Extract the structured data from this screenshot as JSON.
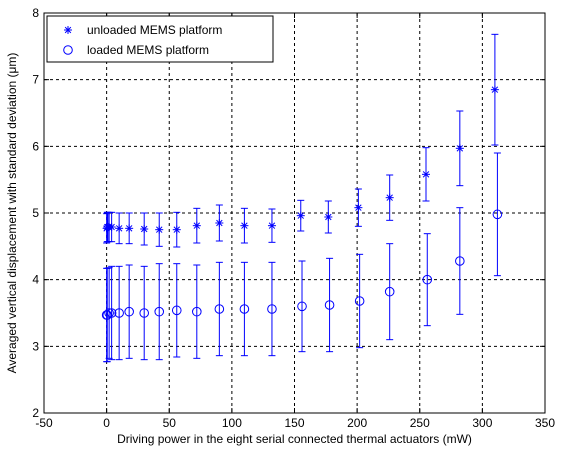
{
  "chart_data": {
    "type": "scatter",
    "xlabel": "Driving power in the eight serial connected thermal actuators (mW)",
    "ylabel": "Averaged vertical displacement with standard deviation (μm)",
    "xlim": [
      -50,
      350
    ],
    "ylim": [
      2,
      8
    ],
    "xticks": [
      -50,
      0,
      50,
      100,
      150,
      200,
      250,
      300,
      350
    ],
    "yticks": [
      2,
      3,
      4,
      5,
      6,
      7,
      8
    ],
    "grid": true,
    "legend_position": "top-left",
    "series_color": "#0000ff",
    "series": [
      {
        "name": "unloaded MEMS platform",
        "marker": "asterisk",
        "x": [
          0,
          0.5,
          1,
          2,
          4,
          10,
          18,
          30,
          42,
          56,
          72,
          90,
          110,
          132,
          155,
          177,
          201,
          226,
          255,
          282,
          310
        ],
        "y": [
          4.77,
          4.79,
          4.79,
          4.79,
          4.79,
          4.77,
          4.77,
          4.76,
          4.75,
          4.75,
          4.81,
          4.85,
          4.81,
          4.81,
          4.96,
          4.94,
          5.08,
          5.23,
          5.58,
          5.97,
          6.85
        ],
        "err": [
          0.22,
          0.22,
          0.22,
          0.22,
          0.22,
          0.23,
          0.23,
          0.24,
          0.25,
          0.26,
          0.26,
          0.27,
          0.26,
          0.25,
          0.23,
          0.24,
          0.28,
          0.34,
          0.4,
          0.56,
          0.83
        ]
      },
      {
        "name": "loaded MEMS platform",
        "marker": "circle",
        "x": [
          0,
          0.5,
          2,
          4,
          10,
          18,
          30,
          42,
          56,
          72,
          90,
          110,
          132,
          156,
          178,
          202,
          226,
          256,
          282,
          312
        ],
        "y": [
          3.47,
          3.47,
          3.5,
          3.5,
          3.5,
          3.52,
          3.5,
          3.52,
          3.54,
          3.52,
          3.56,
          3.56,
          3.56,
          3.6,
          3.62,
          3.68,
          3.82,
          4.0,
          4.28,
          4.98
        ],
        "err": [
          0.7,
          0.7,
          0.68,
          0.7,
          0.7,
          0.7,
          0.7,
          0.72,
          0.7,
          0.7,
          0.7,
          0.7,
          0.7,
          0.68,
          0.7,
          0.7,
          0.72,
          0.69,
          0.8,
          0.92
        ]
      }
    ]
  }
}
